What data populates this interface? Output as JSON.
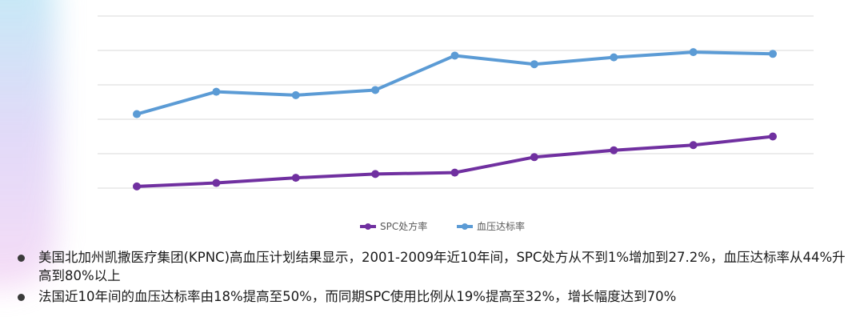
{
  "chart_data": {
    "type": "line",
    "categories": [
      "",
      "",
      "",
      "",
      "",
      "",
      "",
      "",
      ""
    ],
    "series": [
      {
        "name": "SPC处方率",
        "color": "#7030A0",
        "values": [
          0.5,
          1.5,
          3.0,
          4.1,
          4.5,
          9.0,
          11.0,
          12.5,
          15.0
        ]
      },
      {
        "name": "血压达标率",
        "color": "#5B9BD5",
        "values": [
          21.5,
          28.0,
          27.0,
          28.5,
          38.5,
          36.0,
          38.0,
          39.5,
          39.0
        ]
      }
    ],
    "ylim": [
      0,
      50
    ],
    "grid": true,
    "legend": "bottom"
  },
  "bullets": [
    "美国北加州凯撒医疗集团(KPNC)高血压计划结果显示，2001-2009年近10年间，SPC处方从不到1%增加到27.2%，血压达标率从44%升高到80%以上",
    "法国近10年间的血压达标率由18%提高至50%，而同期SPC使用比例从19%提高至32%，增长幅度达到70%"
  ]
}
